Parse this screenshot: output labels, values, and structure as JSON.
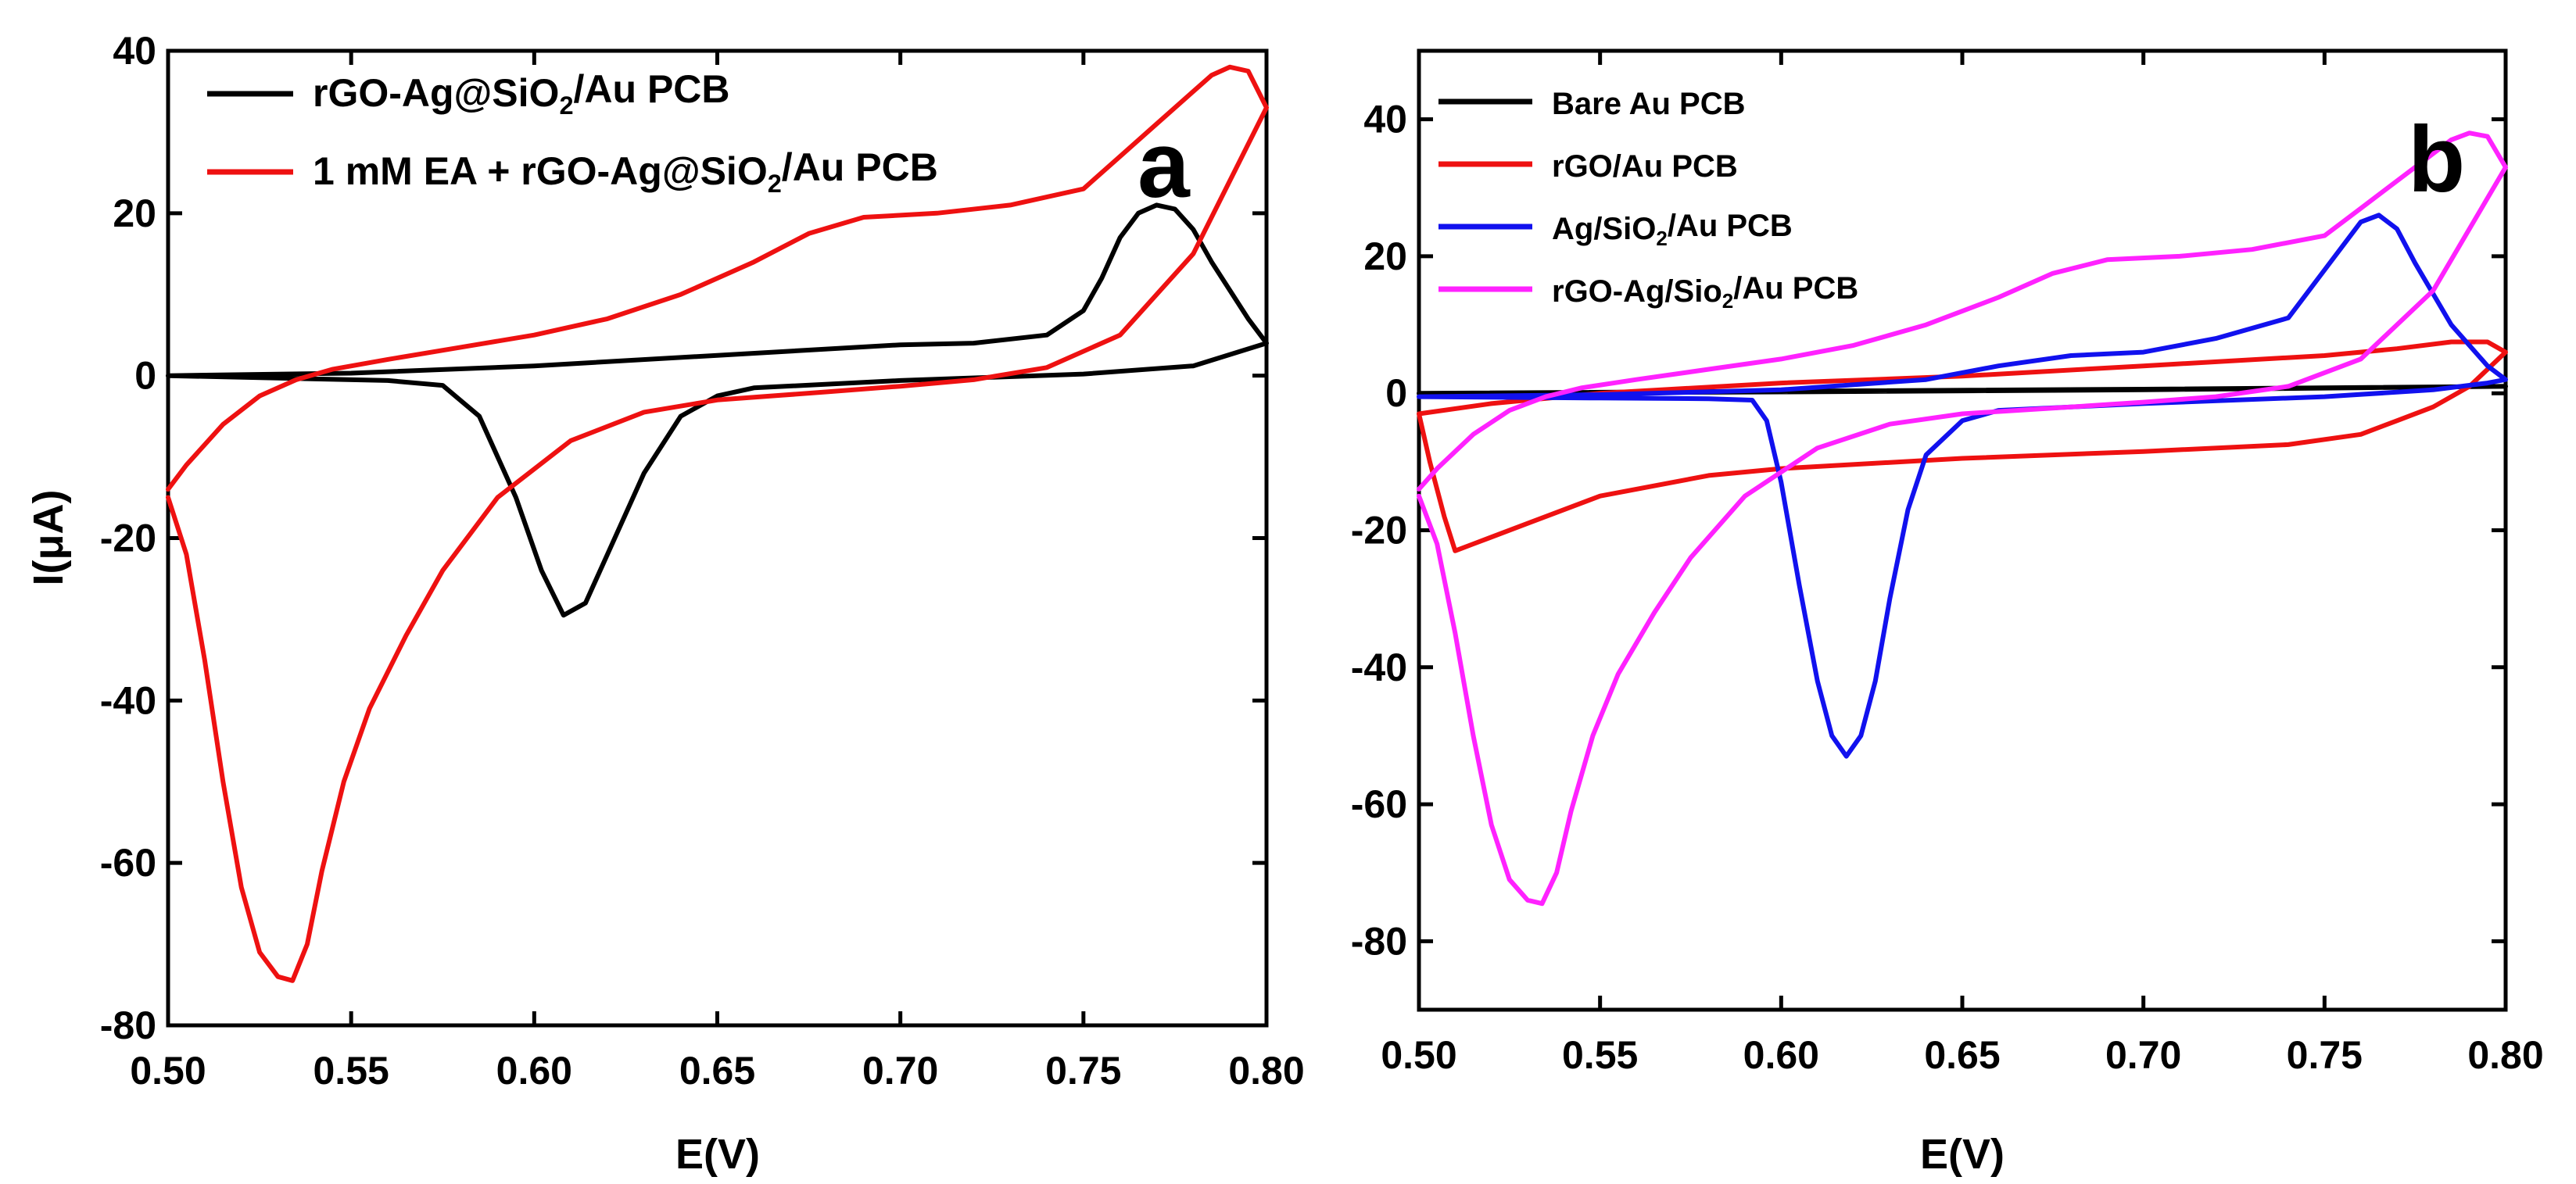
{
  "chart_data": [
    {
      "type": "line",
      "panel_label": "a",
      "xlabel": "E(V)",
      "ylabel": "I(μA)",
      "xlim": [
        0.5,
        0.8
      ],
      "ylim": [
        -80,
        40
      ],
      "xticks": [
        "0.50",
        "0.55",
        "0.60",
        "0.65",
        "0.70",
        "0.75",
        "0.80"
      ],
      "yticks": [
        "40",
        "20",
        "0",
        "-20",
        "-40",
        "-60",
        "-80"
      ],
      "legend_position": "top-left",
      "series": [
        {
          "name": "rGO-Ag@SiO2/Au PCB",
          "legend_text": {
            "base": "rGO-Ag@SiO",
            "sub": "2",
            "rest": "/Au PCB"
          },
          "color": "#000000",
          "x": [
            0.5,
            0.53,
            0.56,
            0.575,
            0.585,
            0.595,
            0.602,
            0.608,
            0.614,
            0.62,
            0.63,
            0.64,
            0.65,
            0.66,
            0.7,
            0.75,
            0.78,
            0.8,
            0.795,
            0.785,
            0.78,
            0.775,
            0.77,
            0.765,
            0.76,
            0.755,
            0.75,
            0.74,
            0.72,
            0.7,
            0.65,
            0.6,
            0.55,
            0.5
          ],
          "y": [
            0,
            -0.3,
            -0.6,
            -1.2,
            -5,
            -15,
            -24,
            -29.5,
            -28,
            -22,
            -12,
            -5,
            -2.5,
            -1.5,
            -0.6,
            0.2,
            1.2,
            4,
            7,
            14,
            18,
            20.5,
            21,
            20,
            17,
            12,
            8,
            5,
            4,
            3.8,
            2.5,
            1.2,
            0.3,
            0
          ]
        },
        {
          "name": "1 mM EA + rGO-Ag@SiO2/Au PCB",
          "legend_text": {
            "base": "1 mM EA + rGO-Ag@SiO",
            "sub": "2",
            "rest": "/Au PCB"
          },
          "color": "#ee1111",
          "x": [
            0.5,
            0.505,
            0.51,
            0.515,
            0.52,
            0.525,
            0.53,
            0.534,
            0.538,
            0.542,
            0.548,
            0.555,
            0.565,
            0.575,
            0.59,
            0.61,
            0.63,
            0.65,
            0.68,
            0.7,
            0.72,
            0.74,
            0.76,
            0.78,
            0.8,
            0.795,
            0.79,
            0.785,
            0.78,
            0.77,
            0.76,
            0.75,
            0.73,
            0.71,
            0.69,
            0.675,
            0.66,
            0.64,
            0.62,
            0.6,
            0.58,
            0.56,
            0.545,
            0.535,
            0.525,
            0.515,
            0.505,
            0.5
          ],
          "y": [
            -15,
            -22,
            -35,
            -50,
            -63,
            -71,
            -74,
            -74.5,
            -70,
            -61,
            -50,
            -41,
            -32,
            -24,
            -15,
            -8,
            -4.5,
            -3,
            -2,
            -1.3,
            -0.5,
            1,
            5,
            15,
            33,
            37.5,
            38,
            37,
            35,
            31,
            27,
            23,
            21,
            20,
            19.5,
            17.5,
            14,
            10,
            7,
            5,
            3.5,
            2,
            0.8,
            -0.5,
            -2.5,
            -6,
            -11,
            -14
          ]
        }
      ]
    },
    {
      "type": "line",
      "panel_label": "b",
      "xlabel": "E(V)",
      "ylabel": "",
      "xlim": [
        0.5,
        0.8
      ],
      "ylim": [
        -90,
        50
      ],
      "xticks": [
        "0.50",
        "0.55",
        "0.60",
        "0.65",
        "0.70",
        "0.75",
        "0.80"
      ],
      "yticks": [
        "40",
        "20",
        "0",
        "-20",
        "-40",
        "-60",
        "-80"
      ],
      "legend_position": "top-left",
      "series": [
        {
          "name": "Bare Au PCB",
          "legend_text": {
            "base": "Bare Au PCB",
            "sub": "",
            "rest": ""
          },
          "color": "#000000",
          "x": [
            0.5,
            0.6,
            0.7,
            0.8,
            0.7,
            0.6,
            0.5
          ],
          "y": [
            0,
            0.2,
            0.5,
            1,
            0.6,
            0.3,
            0
          ]
        },
        {
          "name": "rGO/Au PCB",
          "legend_text": {
            "base": "rGO/Au PCB",
            "sub": "",
            "rest": ""
          },
          "color": "#ee1111",
          "x": [
            0.5,
            0.503,
            0.507,
            0.51,
            0.515,
            0.53,
            0.55,
            0.58,
            0.6,
            0.65,
            0.7,
            0.74,
            0.76,
            0.77,
            0.78,
            0.79,
            0.8,
            0.795,
            0.785,
            0.77,
            0.75,
            0.7,
            0.65,
            0.6,
            0.55,
            0.52,
            0.5
          ],
          "y": [
            -3,
            -10,
            -18,
            -23,
            -22,
            -19,
            -15,
            -12,
            -11,
            -9.5,
            -8.5,
            -7.5,
            -6,
            -4,
            -2,
            1,
            6,
            7.5,
            7.5,
            6.5,
            5.5,
            4,
            2.5,
            1.5,
            0,
            -1.5,
            -3
          ]
        },
        {
          "name": "Ag/SiO2/Au PCB",
          "legend_text": {
            "base": "Ag/SiO",
            "sub": "2",
            "rest": "/Au PCB"
          },
          "color": "#1111ee",
          "x": [
            0.5,
            0.55,
            0.58,
            0.592,
            0.596,
            0.6,
            0.605,
            0.61,
            0.614,
            0.618,
            0.622,
            0.626,
            0.63,
            0.635,
            0.64,
            0.65,
            0.66,
            0.7,
            0.75,
            0.78,
            0.795,
            0.8,
            0.795,
            0.785,
            0.775,
            0.77,
            0.765,
            0.76,
            0.75,
            0.74,
            0.72,
            0.7,
            0.68,
            0.66,
            0.64,
            0.6,
            0.55,
            0.5
          ],
          "y": [
            -0.5,
            -0.7,
            -0.8,
            -1,
            -4,
            -13,
            -28,
            -42,
            -50,
            -53,
            -50,
            -42,
            -30,
            -17,
            -9,
            -4,
            -2.5,
            -1.5,
            -0.5,
            0.5,
            1.5,
            2,
            4,
            10,
            19,
            24,
            26,
            25,
            18,
            11,
            8,
            6,
            5.5,
            4,
            2,
            0.5,
            -0.2,
            -0.5
          ]
        },
        {
          "name": "rGO-Ag/Sio2/Au PCB",
          "legend_text": {
            "base": "rGO-Ag/Sio",
            "sub": "2",
            "rest": "/Au PCB"
          },
          "color": "#ff22ff",
          "x": [
            0.5,
            0.505,
            0.51,
            0.515,
            0.52,
            0.525,
            0.53,
            0.534,
            0.538,
            0.542,
            0.548,
            0.555,
            0.565,
            0.575,
            0.59,
            0.61,
            0.63,
            0.65,
            0.68,
            0.7,
            0.72,
            0.74,
            0.76,
            0.78,
            0.8,
            0.795,
            0.79,
            0.785,
            0.78,
            0.77,
            0.76,
            0.75,
            0.73,
            0.71,
            0.69,
            0.675,
            0.66,
            0.64,
            0.62,
            0.6,
            0.58,
            0.56,
            0.545,
            0.535,
            0.525,
            0.515,
            0.505,
            0.5
          ],
          "y": [
            -15,
            -22,
            -35,
            -50,
            -63,
            -71,
            -74,
            -74.5,
            -70,
            -61,
            -50,
            -41,
            -32,
            -24,
            -15,
            -8,
            -4.5,
            -3,
            -2,
            -1.3,
            -0.5,
            1,
            5,
            15,
            33,
            37.5,
            38,
            37,
            35,
            31,
            27,
            23,
            21,
            20,
            19.5,
            17.5,
            14,
            10,
            7,
            5,
            3.5,
            2,
            0.8,
            -0.5,
            -2.5,
            -6,
            -11,
            -14
          ]
        }
      ]
    }
  ]
}
